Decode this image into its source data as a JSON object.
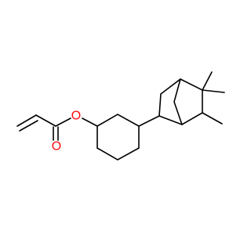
{
  "atoms": [
    {
      "label": "O"
    },
    {
      "label": "O"
    }
  ]
}
